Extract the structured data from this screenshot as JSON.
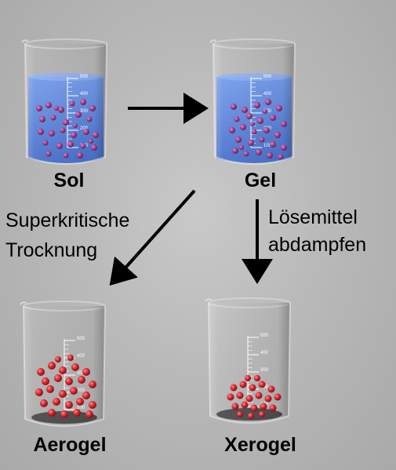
{
  "diagram": {
    "title": "",
    "colors": {
      "background": "#b9b9b9",
      "liquid": "#4a7ee0",
      "particle_dissolved": "#9b3f86",
      "particle_dry": "#d8262e",
      "arrow": "#000000"
    },
    "beakers": [
      {
        "id": "sol",
        "label": "Sol",
        "state": "liquid",
        "scale_ticks": [
          "500",
          "400",
          "300",
          "200",
          "100"
        ]
      },
      {
        "id": "gel",
        "label": "Gel",
        "state": "liquid-network",
        "scale_ticks": [
          "500",
          "400",
          "300",
          "200",
          "100"
        ]
      },
      {
        "id": "aerogel",
        "label": "Aerogel",
        "state": "dry-loose",
        "scale_ticks": [
          "500",
          "400",
          "300",
          "200",
          "100"
        ]
      },
      {
        "id": "xerogel",
        "label": "Xerogel",
        "state": "dry-dense",
        "scale_ticks": [
          "500",
          "400",
          "300",
          "200",
          "100"
        ]
      }
    ],
    "transitions": [
      {
        "from": "sol",
        "to": "gel",
        "label_lines": []
      },
      {
        "from": "gel",
        "to": "aerogel",
        "label_lines": [
          "Superkritische",
          "Trocknung"
        ]
      },
      {
        "from": "gel",
        "to": "xerogel",
        "label_lines": [
          "Lösemittel",
          "abdampfen"
        ]
      }
    ]
  }
}
